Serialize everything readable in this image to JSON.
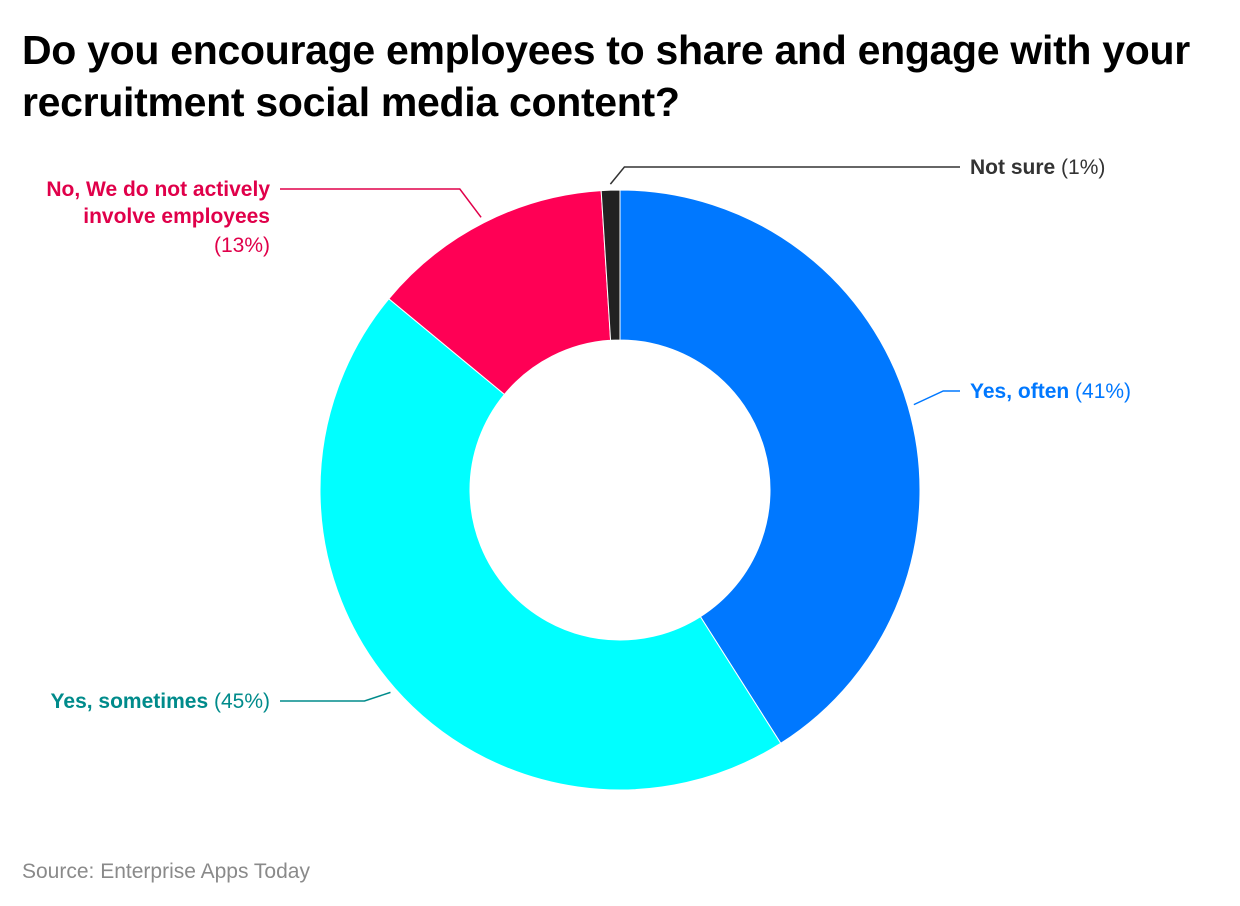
{
  "title": "Do you encourage employees to share and engage with your recruitment social media content?",
  "source": "Source: Enterprise Apps Today",
  "chart_data": {
    "type": "pie",
    "donut": true,
    "slices": [
      {
        "label": "Yes, often",
        "value": 41,
        "pct_text": "(41%)",
        "color": "#0078FF",
        "label_color": "#0078FF"
      },
      {
        "label": "Yes, sometimes",
        "value": 45,
        "pct_text": "(45%)",
        "color": "#00FFFF",
        "label_color": "#008B8B"
      },
      {
        "label_lines": [
          "No, We do not actively",
          "involve employees"
        ],
        "value": 13,
        "pct_text": "(13%)",
        "color": "#FF0055",
        "label_color": "#E0004A"
      },
      {
        "label": "Not sure",
        "value": 1,
        "pct_text": "(1%)",
        "color": "#222222",
        "label_color": "#333333"
      }
    ]
  }
}
